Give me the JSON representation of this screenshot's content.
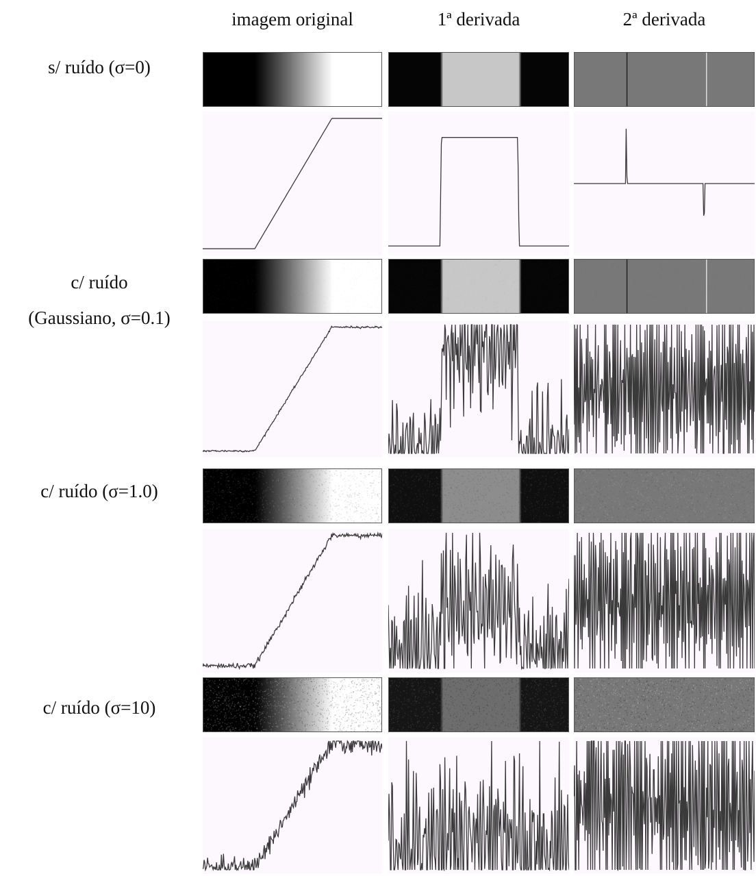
{
  "columns": [
    {
      "label": "imagem original"
    },
    {
      "label": "1ª derivada"
    },
    {
      "label": "2ª derivada"
    }
  ],
  "rows": [
    {
      "label_lines": [
        "s/ ruído (σ=0)"
      ],
      "noise": 0
    },
    {
      "label_lines": [
        "c/ ruído",
        "(Gaussiano, σ=0.1)"
      ],
      "noise": 0.1
    },
    {
      "label_lines": [
        "c/ ruído (σ=1.0)"
      ],
      "noise": 1.0
    },
    {
      "label_lines": [
        "c/ ruído (σ=10)"
      ],
      "noise": 10
    }
  ],
  "colors": {
    "plot_background": "#fdf8fd",
    "trace": "#3a3a3a",
    "strip_gray": "#7a7a7a",
    "strip_border": "#555555"
  }
}
